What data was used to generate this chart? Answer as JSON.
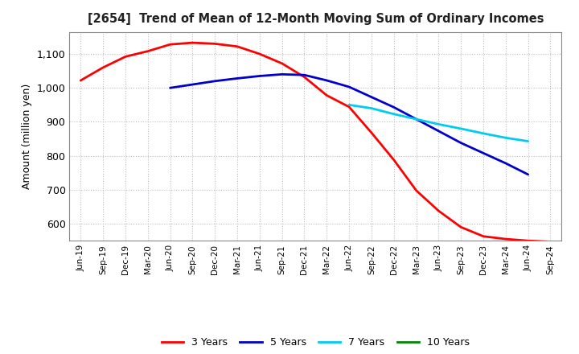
{
  "title": "[2654]  Trend of Mean of 12-Month Moving Sum of Ordinary Incomes",
  "ylabel": "Amount (million yen)",
  "background_color": "#ffffff",
  "plot_background": "#ffffff",
  "grid_color": "#aaaaaa",
  "ylim": [
    550,
    1165
  ],
  "yticks": [
    600,
    700,
    800,
    900,
    1000,
    1100
  ],
  "x_labels": [
    "Jun-19",
    "Sep-19",
    "Dec-19",
    "Mar-20",
    "Jun-20",
    "Sep-20",
    "Dec-20",
    "Mar-21",
    "Jun-21",
    "Sep-21",
    "Dec-21",
    "Mar-22",
    "Jun-22",
    "Sep-22",
    "Dec-22",
    "Mar-23",
    "Jun-23",
    "Sep-23",
    "Dec-23",
    "Mar-24",
    "Jun-24",
    "Sep-24"
  ],
  "series": {
    "3 Years": {
      "color": "#ff0000",
      "linewidth": 2.0,
      "values": [
        1022,
        1060,
        1092,
        1108,
        1128,
        1133,
        1130,
        1122,
        1100,
        1072,
        1032,
        978,
        944,
        868,
        788,
        698,
        638,
        590,
        563,
        555,
        550,
        547
      ]
    },
    "5 Years": {
      "color": "#0000cc",
      "linewidth": 2.0,
      "values": [
        null,
        null,
        null,
        null,
        1000,
        1010,
        1020,
        1028,
        1035,
        1040,
        1038,
        1022,
        1003,
        973,
        943,
        908,
        873,
        838,
        808,
        778,
        745,
        null
      ]
    },
    "7 Years": {
      "color": "#00ccee",
      "linewidth": 2.0,
      "values": [
        null,
        null,
        null,
        null,
        null,
        null,
        null,
        null,
        null,
        null,
        null,
        null,
        950,
        940,
        923,
        908,
        893,
        880,
        866,
        853,
        843,
        null
      ]
    },
    "10 Years": {
      "color": "#008800",
      "linewidth": 2.0,
      "values": [
        null,
        null,
        null,
        null,
        null,
        null,
        null,
        null,
        null,
        null,
        null,
        null,
        null,
        null,
        null,
        null,
        null,
        null,
        null,
        null,
        null,
        null
      ]
    }
  },
  "legend_entries": [
    "3 Years",
    "5 Years",
    "7 Years",
    "10 Years"
  ],
  "legend_colors": [
    "#ff0000",
    "#0000cc",
    "#00ccee",
    "#008800"
  ]
}
